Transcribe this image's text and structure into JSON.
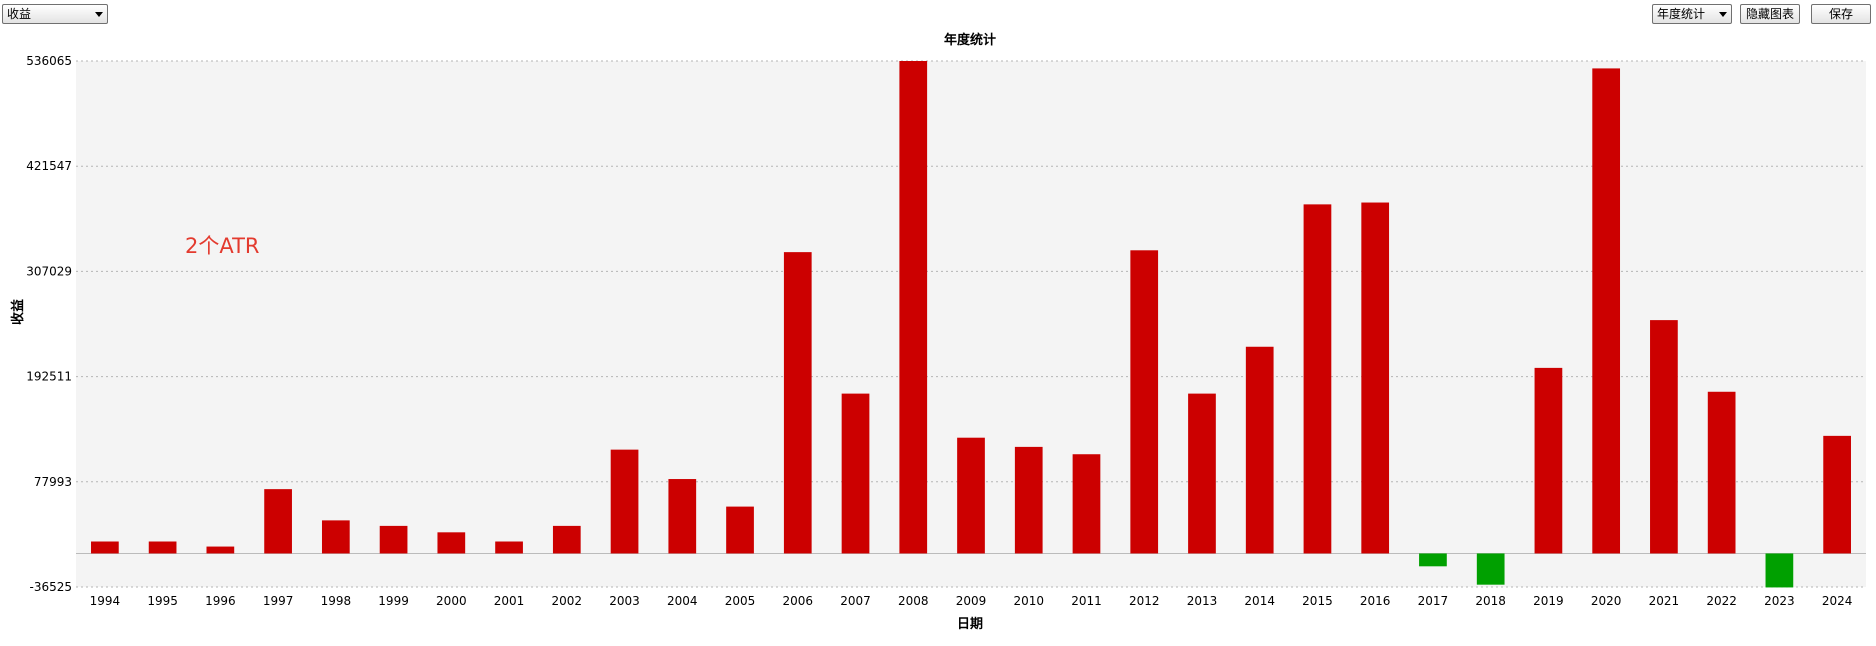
{
  "toolbar": {
    "metric_select": "收益",
    "period_select": "年度统计",
    "hide_chart_label": "隐藏图表",
    "save_label": "保存"
  },
  "annotation": "2个ATR",
  "colors": {
    "positive": "#cc0000",
    "negative": "#00a000",
    "plot_bg": "#f4f4f4",
    "note": "#e33a2e"
  },
  "chart_data": {
    "type": "bar",
    "title": "年度统计",
    "xlabel": "日期",
    "ylabel": "收益",
    "ylim": [
      -36525,
      536065
    ],
    "yticks": [
      -36525,
      77993,
      192511,
      307029,
      421547,
      536065
    ],
    "grid": true,
    "categories": [
      "1994",
      "1995",
      "1996",
      "1997",
      "1998",
      "1999",
      "2000",
      "2001",
      "2002",
      "2003",
      "2004",
      "2005",
      "2006",
      "2007",
      "2008",
      "2009",
      "2010",
      "2011",
      "2012",
      "2013",
      "2014",
      "2015",
      "2016",
      "2017",
      "2018",
      "2019",
      "2020",
      "2021",
      "2022",
      "2023",
      "2024"
    ],
    "values": [
      13000,
      13000,
      7500,
      70000,
      36000,
      30000,
      23000,
      13000,
      30000,
      113000,
      81000,
      51000,
      328000,
      174000,
      536065,
      126000,
      116000,
      108000,
      330000,
      174000,
      225000,
      380000,
      382000,
      -14000,
      -34000,
      202000,
      528000,
      254000,
      176000,
      -37000,
      128000
    ]
  }
}
